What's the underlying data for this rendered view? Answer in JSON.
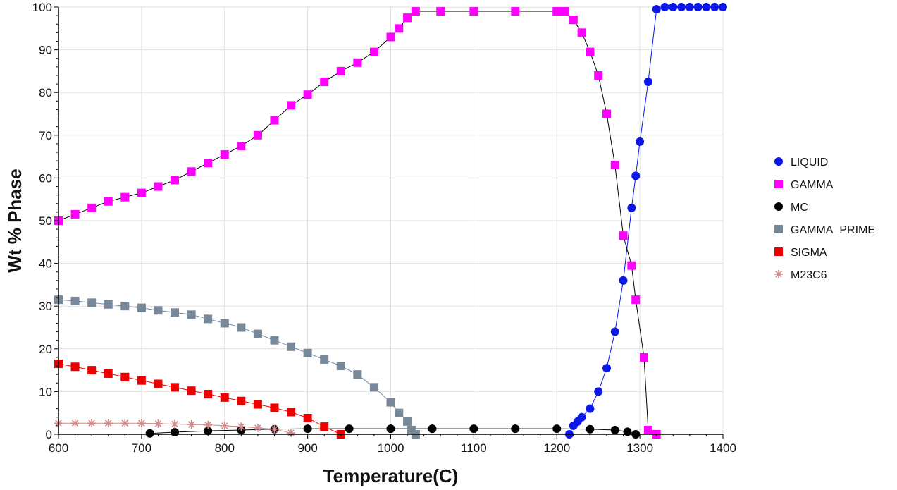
{
  "chart_data": {
    "type": "line",
    "title": "",
    "xlabel": "Temperature(C)",
    "ylabel": "Wt % Phase",
    "xlim": [
      600,
      1400
    ],
    "ylim": [
      0,
      100
    ],
    "x_ticks": [
      600,
      700,
      800,
      900,
      1000,
      1100,
      1200,
      1300,
      1400
    ],
    "y_ticks": [
      0,
      10,
      20,
      30,
      40,
      50,
      60,
      70,
      80,
      90,
      100
    ],
    "grid": true,
    "legend_position": "right",
    "series": [
      {
        "name": "LIQUID",
        "color": "#0a17e6",
        "marker": "circle",
        "x": [
          1215,
          1220,
          1225,
          1230,
          1240,
          1250,
          1260,
          1270,
          1280,
          1290,
          1295,
          1300,
          1310,
          1320,
          1330,
          1340,
          1350,
          1360,
          1370,
          1380,
          1390,
          1400
        ],
        "y": [
          0,
          2,
          3,
          4,
          6,
          10,
          15.5,
          24,
          36,
          53,
          60.5,
          68.5,
          82.5,
          99.5,
          100,
          100,
          100,
          100,
          100,
          100,
          100,
          100
        ]
      },
      {
        "name": "GAMMA",
        "color": "#ff00ff",
        "marker": "square",
        "x": [
          600,
          620,
          640,
          660,
          680,
          700,
          720,
          740,
          760,
          780,
          800,
          820,
          840,
          860,
          880,
          900,
          920,
          940,
          960,
          980,
          1000,
          1010,
          1020,
          1030,
          1060,
          1100,
          1150,
          1200,
          1210,
          1220,
          1230,
          1240,
          1250,
          1260,
          1270,
          1280,
          1290,
          1295,
          1305,
          1310,
          1320
        ],
        "y": [
          50,
          51.5,
          53,
          54.5,
          55.5,
          56.5,
          58,
          59.5,
          61.5,
          63.5,
          65.5,
          67.5,
          70,
          73.5,
          77,
          79.5,
          82.5,
          85,
          87,
          89.5,
          93,
          95,
          97.5,
          99,
          99,
          99,
          99,
          99,
          99,
          97,
          94,
          89.5,
          84,
          75,
          63,
          46.5,
          39.5,
          31.5,
          18,
          1,
          0
        ]
      },
      {
        "name": "MC",
        "color": "#000000",
        "marker": "circle",
        "x": [
          710,
          740,
          780,
          820,
          860,
          900,
          950,
          1000,
          1050,
          1100,
          1150,
          1200,
          1240,
          1270,
          1285,
          1295
        ],
        "y": [
          0.2,
          0.5,
          0.8,
          1.0,
          1.2,
          1.3,
          1.3,
          1.3,
          1.3,
          1.3,
          1.3,
          1.3,
          1.2,
          1.0,
          0.6,
          0
        ]
      },
      {
        "name": "GAMMA_PRIME",
        "color": "#778899",
        "marker": "square",
        "x": [
          600,
          620,
          640,
          660,
          680,
          700,
          720,
          740,
          760,
          780,
          800,
          820,
          840,
          860,
          880,
          900,
          920,
          940,
          960,
          980,
          1000,
          1010,
          1020,
          1025,
          1030
        ],
        "y": [
          31.5,
          31.2,
          30.8,
          30.4,
          30,
          29.6,
          29,
          28.5,
          28,
          27,
          26,
          25,
          23.5,
          22,
          20.5,
          19,
          17.5,
          16,
          14,
          11,
          7.5,
          5,
          3,
          1,
          0
        ]
      },
      {
        "name": "SIGMA",
        "color": "#ee0000",
        "marker": "square",
        "x": [
          600,
          620,
          640,
          660,
          680,
          700,
          720,
          740,
          760,
          780,
          800,
          820,
          840,
          860,
          880,
          900,
          920,
          940
        ],
        "y": [
          16.5,
          15.8,
          15,
          14.2,
          13.4,
          12.6,
          11.8,
          11,
          10.2,
          9.4,
          8.6,
          7.8,
          7,
          6.2,
          5.2,
          3.8,
          1.8,
          0
        ]
      },
      {
        "name": "M23C6",
        "color": "#d08a8a",
        "marker": "star",
        "x": [
          600,
          620,
          640,
          660,
          680,
          700,
          720,
          740,
          760,
          780,
          800,
          820,
          840,
          860,
          880
        ],
        "y": [
          2.6,
          2.6,
          2.6,
          2.6,
          2.6,
          2.6,
          2.5,
          2.4,
          2.3,
          2.2,
          2.0,
          1.8,
          1.5,
          1.2,
          0.3
        ]
      }
    ]
  }
}
